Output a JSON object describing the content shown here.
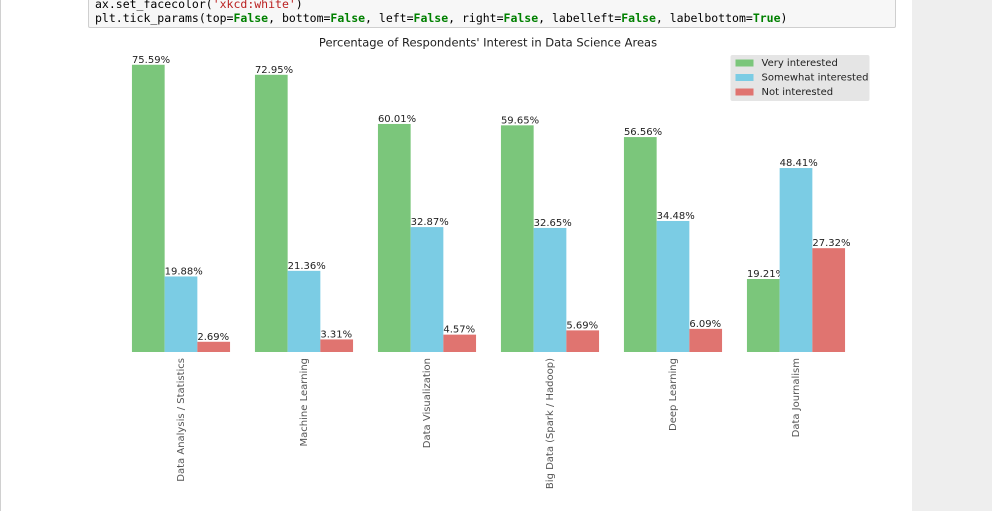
{
  "code": [
    "ax.set_facecolor('xkcd:white')",
    "plt.tick_params(top=False, bottom=False, left=False, right=False, labelleft=False, labelbottom=True)"
  ],
  "chart_data": {
    "type": "bar",
    "title": "Percentage of Respondents' Interest in Data Science Areas",
    "categories": [
      "Data Analysis / Statistics",
      "Machine Learning",
      "Data Visualization",
      "Big Data (Spark / Hadoop)",
      "Deep Learning",
      "Data Journalism"
    ],
    "series": [
      {
        "name": "Very interested",
        "color": "#7bc67b",
        "values": [
          75.59,
          72.95,
          60.01,
          59.65,
          56.56,
          19.21
        ],
        "value_labels": [
          "75.59%",
          "72.95%",
          "60.01%",
          "59.65%",
          "56.56%",
          "19.21%"
        ]
      },
      {
        "name": "Somewhat interested",
        "color": "#7bcce4",
        "values": [
          19.88,
          21.36,
          32.87,
          32.65,
          34.48,
          48.41
        ],
        "value_labels": [
          "19.88%",
          "21.36%",
          "32.87%",
          "32.65%",
          "34.48%",
          "48.41%"
        ]
      },
      {
        "name": "Not interested",
        "color": "#e07470",
        "values": [
          2.69,
          3.31,
          4.57,
          5.69,
          6.09,
          27.32
        ],
        "value_labels": [
          "2.69%",
          "3.31%",
          "4.57%",
          "5.69%",
          "6.09%",
          "27.32%"
        ]
      }
    ],
    "ylim": [
      0,
      80
    ],
    "legend": "upper right",
    "grid": false
  }
}
